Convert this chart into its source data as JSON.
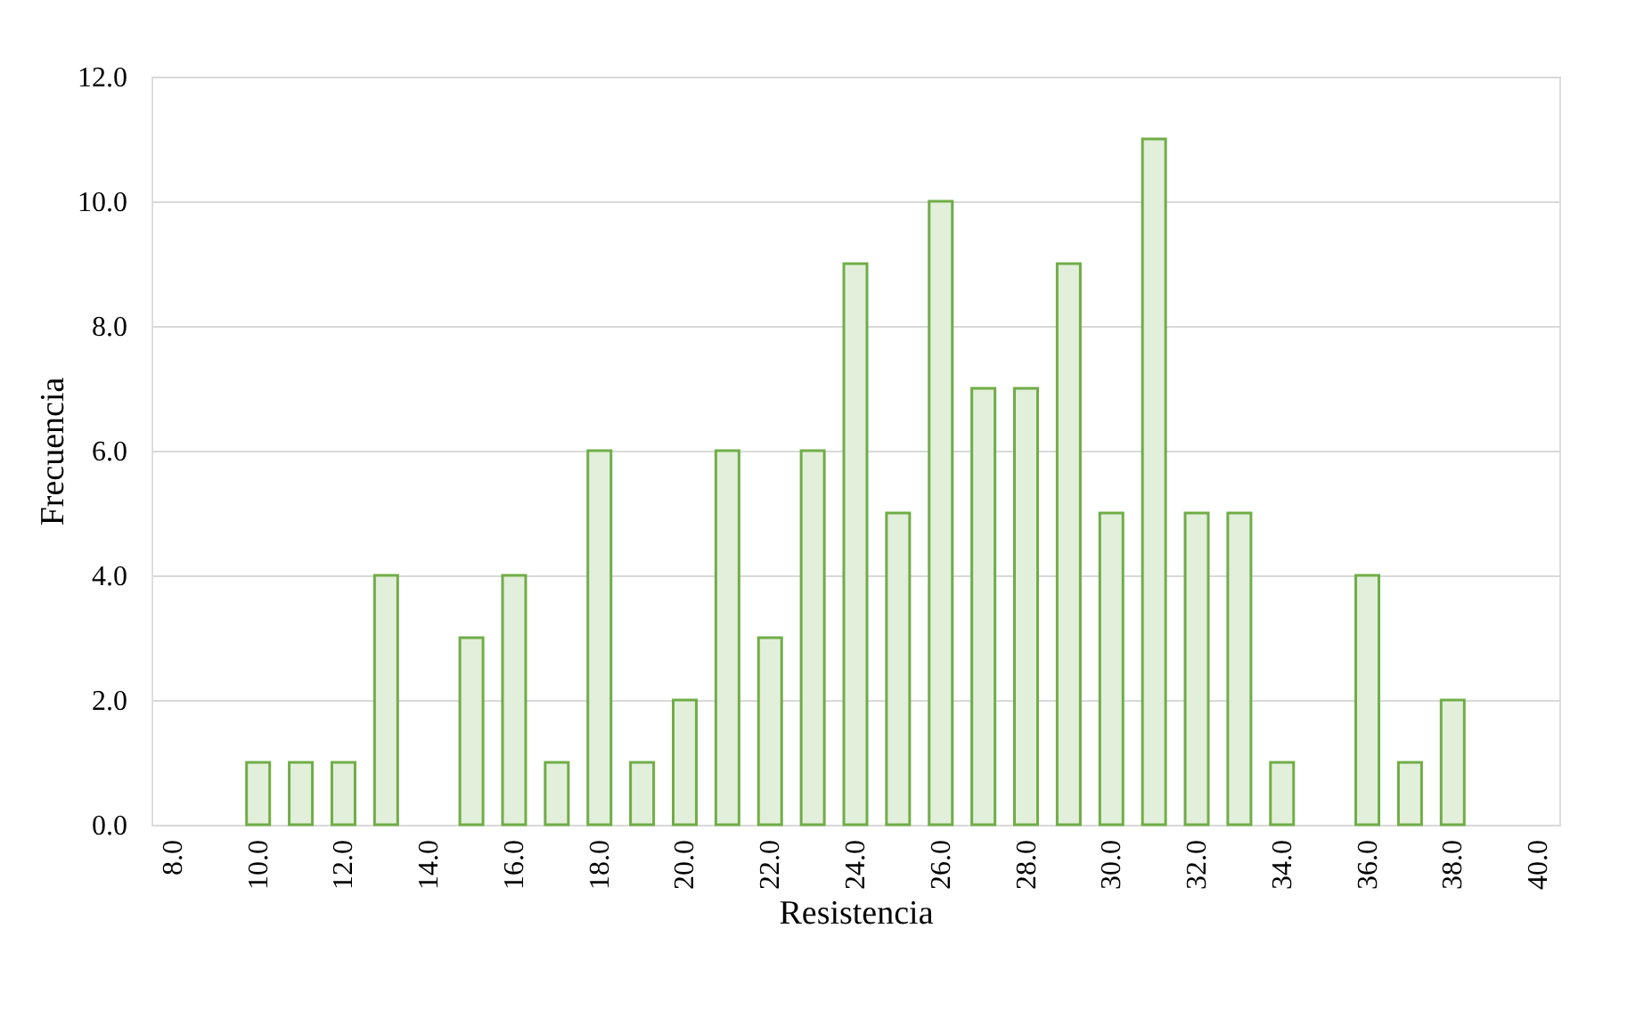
{
  "chart_data": {
    "type": "bar",
    "xlabel": "Resistencia",
    "ylabel": "Frecuencia",
    "categories": [
      "8.0",
      null,
      "10.0",
      null,
      "12.0",
      null,
      "14.0",
      null,
      "16.0",
      null,
      "18.0",
      null,
      "20.0",
      null,
      "22.0",
      null,
      "24.0",
      null,
      "26.0",
      null,
      "28.0",
      null,
      "30.0",
      null,
      "32.0",
      null,
      "34.0",
      null,
      "36.0",
      null,
      "38.0",
      null,
      "40.0"
    ],
    "values": [
      0,
      0,
      1,
      1,
      1,
      4,
      0,
      3,
      4,
      1,
      6,
      1,
      2,
      6,
      3,
      6,
      9,
      5,
      10,
      7,
      7,
      9,
      5,
      11,
      5,
      5,
      1,
      0,
      4,
      1,
      2,
      0,
      0
    ],
    "color": "#e2efda",
    "ylim": [
      0,
      12
    ],
    "yticks": [
      {
        "value": 0,
        "label": "0.0"
      },
      {
        "value": 2,
        "label": "2.0"
      },
      {
        "value": 4,
        "label": "4.0"
      },
      {
        "value": 6,
        "label": "6.0"
      },
      {
        "value": 8,
        "label": "8.0"
      },
      {
        "value": 10,
        "label": "10.0"
      },
      {
        "value": 12,
        "label": "12.0"
      }
    ],
    "grid": "y"
  }
}
